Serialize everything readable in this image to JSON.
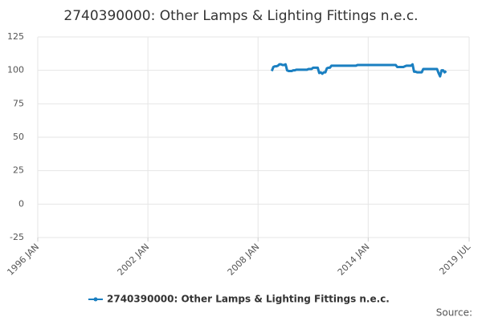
{
  "chart_data": {
    "type": "line",
    "title": "2740390000: Other Lamps & Lighting Fittings n.e.c.",
    "source": "Source:",
    "x": [
      "2008-10",
      "2008-11",
      "2008-12",
      "2009-01",
      "2009-02",
      "2009-03",
      "2009-04",
      "2009-05",
      "2009-06",
      "2009-07",
      "2009-08",
      "2009-09",
      "2009-10",
      "2009-11",
      "2009-12",
      "2010-01",
      "2010-02",
      "2010-03",
      "2010-04",
      "2010-05",
      "2010-06",
      "2010-07",
      "2010-08",
      "2010-09",
      "2010-10",
      "2010-11",
      "2010-12",
      "2011-01",
      "2011-02",
      "2011-03",
      "2011-04",
      "2011-05",
      "2011-06",
      "2011-07",
      "2011-08",
      "2011-09",
      "2011-10",
      "2011-11",
      "2011-12",
      "2012-01",
      "2012-02",
      "2012-03",
      "2012-04",
      "2012-05",
      "2012-06",
      "2012-07",
      "2012-08",
      "2012-09",
      "2012-10",
      "2012-11",
      "2012-12",
      "2013-01",
      "2013-02",
      "2013-03",
      "2013-04",
      "2013-05",
      "2013-06",
      "2013-07",
      "2013-08",
      "2013-09",
      "2013-10",
      "2013-11",
      "2013-12",
      "2014-01",
      "2014-02",
      "2014-03",
      "2014-04",
      "2014-05",
      "2014-06",
      "2014-07",
      "2014-08",
      "2014-09",
      "2014-10",
      "2014-11",
      "2014-12",
      "2015-01",
      "2015-02",
      "2015-03",
      "2015-04",
      "2015-05",
      "2015-06",
      "2015-07",
      "2015-08",
      "2015-09",
      "2015-10",
      "2015-11",
      "2015-12",
      "2016-01",
      "2016-02",
      "2016-03",
      "2016-04",
      "2016-05",
      "2016-06",
      "2016-07",
      "2016-08",
      "2016-09",
      "2016-10",
      "2016-11",
      "2016-12",
      "2017-01",
      "2017-02",
      "2017-03",
      "2017-04",
      "2017-05",
      "2017-06",
      "2017-07",
      "2017-08",
      "2017-09",
      "2017-10",
      "2017-11",
      "2017-12",
      "2018-01",
      "2018-02",
      "2018-03",
      "2018-04"
    ],
    "series": [
      {
        "name": "2740390000: Other Lamps & Lighting Fittings n.e.c.",
        "color": "#1a7fc1",
        "values": [
          99.5,
          102.5,
          103,
          103,
          103.5,
          104.5,
          104.5,
          104,
          104,
          104.5,
          100,
          99.5,
          99.5,
          99.5,
          100,
          100,
          100.5,
          100.5,
          100.5,
          100.5,
          100.5,
          100.5,
          100.5,
          100.5,
          101,
          101,
          101,
          102,
          102,
          102,
          102,
          98,
          98.5,
          97.5,
          98.5,
          98.5,
          101.5,
          102,
          102,
          103.5,
          103.5,
          103.5,
          103.5,
          103.5,
          103.5,
          103.5,
          103.5,
          103.5,
          103.5,
          103.5,
          103.5,
          103.5,
          103.5,
          103.5,
          103.5,
          103.5,
          104,
          104,
          104,
          104,
          104,
          104,
          104,
          104,
          104,
          104,
          104,
          104,
          104,
          104,
          104,
          104,
          104,
          104,
          104,
          104,
          104,
          104,
          104,
          104,
          104,
          104,
          102.5,
          102.5,
          102.5,
          102.5,
          102.5,
          103,
          103.5,
          103.5,
          103.5,
          103.5,
          104.5,
          99,
          99,
          98.5,
          98.5,
          98.5,
          98.5,
          101,
          101,
          101,
          101,
          101,
          101,
          101,
          101,
          101,
          101,
          98,
          95.5,
          100,
          100,
          98.5,
          99.5
        ]
      }
    ],
    "xlim": [
      "1996-01",
      "2019-07"
    ],
    "xticks": [
      {
        "value": "1996-01",
        "label": "1996 JAN"
      },
      {
        "value": "2002-01",
        "label": "2002 JAN"
      },
      {
        "value": "2008-01",
        "label": "2008 JAN"
      },
      {
        "value": "2014-01",
        "label": "2014 JAN"
      },
      {
        "value": "2019-07",
        "label": "2019 JUL"
      }
    ],
    "ylim": [
      -25,
      125
    ],
    "yticks": [
      -25,
      0,
      25,
      50,
      75,
      100,
      125
    ],
    "grid": true,
    "legend": "bottom"
  }
}
